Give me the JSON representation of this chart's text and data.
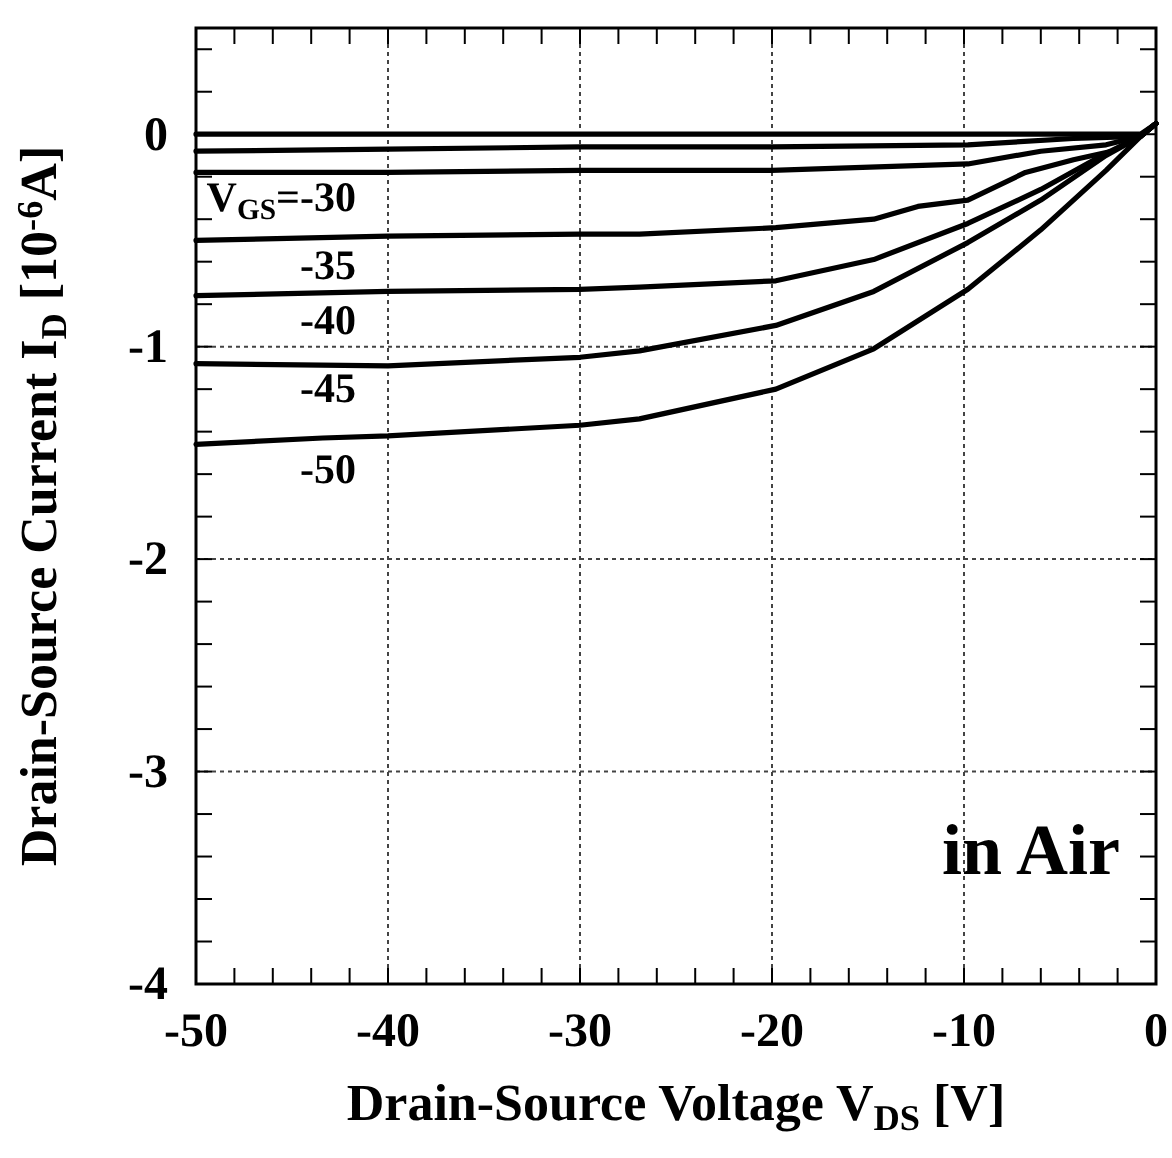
{
  "chart_data": {
    "type": "line",
    "xlabel": "Drain-Source Voltage V$_{DS}$ [V]",
    "ylabel": "Drain-Source Current I$_{D}$  [10$^{-6}$A]",
    "xlim": [
      -50,
      0
    ],
    "ylim": [
      -4,
      0.5
    ],
    "xticks": [
      -50,
      {
        "value": -48,
        "label": null
      },
      {
        "value": -46,
        "label": null
      },
      {
        "value": -44,
        "label": null
      },
      {
        "value": -42,
        "label": null
      },
      -40,
      {
        "value": -38,
        "label": null
      },
      {
        "value": -36,
        "label": null
      },
      {
        "value": -34,
        "label": null
      },
      {
        "value": -32,
        "label": null
      },
      -30,
      {
        "value": -28,
        "label": null
      },
      {
        "value": -26,
        "label": null
      },
      {
        "value": -24,
        "label": null
      },
      {
        "value": -22,
        "label": null
      },
      -20,
      {
        "value": -18,
        "label": null
      },
      {
        "value": -16,
        "label": null
      },
      {
        "value": -14,
        "label": null
      },
      {
        "value": -12,
        "label": null
      },
      -10,
      {
        "value": -8,
        "label": null
      },
      {
        "value": -6,
        "label": null
      },
      {
        "value": -4,
        "label": null
      },
      {
        "value": -2,
        "label": null
      },
      0
    ],
    "yticks": [
      -4,
      {
        "value": -3.8,
        "label": null
      },
      {
        "value": -3.6,
        "label": null
      },
      {
        "value": -3.4,
        "label": null
      },
      {
        "value": -3.2,
        "label": null
      },
      -3,
      {
        "value": -2.8,
        "label": null
      },
      {
        "value": -2.6,
        "label": null
      },
      {
        "value": -2.4,
        "label": null
      },
      {
        "value": -2.2,
        "label": null
      },
      -2,
      {
        "value": -1.8,
        "label": null
      },
      {
        "value": -1.6,
        "label": null
      },
      {
        "value": -1.4,
        "label": null
      },
      {
        "value": -1.2,
        "label": null
      },
      -1,
      {
        "value": -0.8,
        "label": null
      },
      {
        "value": -0.6,
        "label": null
      },
      {
        "value": -0.4,
        "label": null
      },
      {
        "value": -0.2,
        "label": null
      },
      0,
      {
        "value": 0.2,
        "label": null
      },
      {
        "value": 0.4,
        "label": null
      }
    ],
    "grid": true,
    "marker": "none",
    "line_style": "solid",
    "annotations": [
      "in Air"
    ],
    "series": [
      {
        "color": "#000000",
        "x": [
          -50,
          -20,
          -0.8,
          0
        ],
        "values": [
          0,
          0,
          0,
          0.05
        ]
      },
      {
        "color": "#000000",
        "x": [
          -50,
          -40,
          -30,
          -20,
          -9.8,
          -4.3,
          -0.8,
          0
        ],
        "values": [
          -0.08,
          -0.07,
          -0.06,
          -0.06,
          -0.05,
          -0.02,
          -0.01,
          0.05
        ]
      },
      {
        "name": "V$_{GS}$=-30",
        "color": "#000000",
        "x": [
          -50,
          -40,
          -30,
          -20,
          -9.8,
          -6,
          -2.6,
          -0.8,
          0
        ],
        "values": [
          -0.18,
          -0.18,
          -0.17,
          -0.17,
          -0.14,
          -0.08,
          -0.05,
          -0.01,
          0.05
        ]
      },
      {
        "name": "-35",
        "color": "#000000",
        "x": [
          -50,
          -40,
          -30,
          -26.9,
          -19.8,
          -14.7,
          -12.4,
          -9.8,
          -6.8,
          -4.3,
          -2.3,
          -0.8,
          0
        ],
        "values": [
          -0.5,
          -0.48,
          -0.47,
          -0.47,
          -0.44,
          -0.4,
          -0.34,
          -0.31,
          -0.18,
          -0.12,
          -0.08,
          -0.01,
          0.05
        ]
      },
      {
        "name": "-40",
        "color": "#000000",
        "x": [
          -50,
          -40,
          -30,
          -26.9,
          -19.8,
          -14.7,
          -9.8,
          -6,
          -2.6,
          -0.8,
          0
        ],
        "values": [
          -0.76,
          -0.74,
          -0.73,
          -0.72,
          -0.69,
          -0.59,
          -0.42,
          -0.26,
          -0.09,
          -0.01,
          0.05
        ]
      },
      {
        "name": "-45",
        "color": "#000000",
        "x": [
          -50,
          -40,
          -30,
          -26.9,
          -19.8,
          -14.7,
          -9.8,
          -6,
          -2.6,
          -0.8,
          0
        ],
        "values": [
          -1.08,
          -1.09,
          -1.05,
          -1.02,
          -0.9,
          -0.74,
          -0.51,
          -0.31,
          -0.1,
          -0.01,
          0.05
        ]
      },
      {
        "name": "-50",
        "color": "#000000",
        "x": [
          -50,
          -43.4,
          -40,
          -30,
          -26.9,
          -19.8,
          -14.7,
          -9.8,
          -6,
          -2.6,
          -0.8,
          0
        ],
        "values": [
          -1.46,
          -1.43,
          -1.42,
          -1.37,
          -1.34,
          -1.2,
          -1.01,
          -0.73,
          -0.45,
          -0.17,
          -0.01,
          0.05
        ]
      }
    ]
  }
}
